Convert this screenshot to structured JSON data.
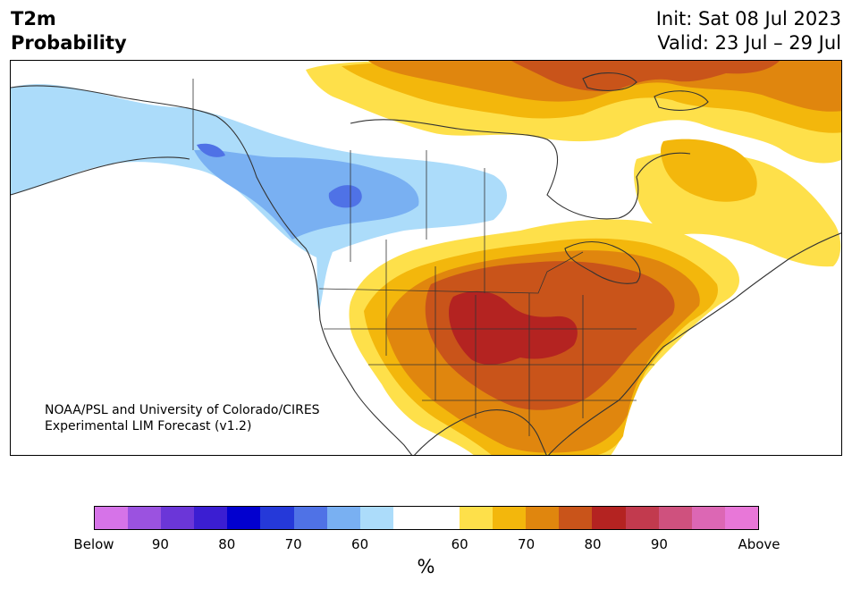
{
  "header": {
    "title_line1": "T2m",
    "title_line2": "Probability",
    "init": "Init: Sat 08 Jul 2023",
    "valid": "Valid: 23 Jul – 29 Jul"
  },
  "map": {
    "region": "North America",
    "credit_line1": "NOAA/PSL and University of Colorado/CIRES",
    "credit_line2": "Experimental LIM Forecast (v1.2)"
  },
  "colorbar": {
    "colors": [
      "#d673e8",
      "#9b52e0",
      "#6b36d8",
      "#3b1ed2",
      "#0200cf",
      "#2539d9",
      "#4f72e6",
      "#79b0f2",
      "#acdcfa",
      "#ffffff",
      "#ffffff",
      "#fee04a",
      "#f3b70c",
      "#e0860e",
      "#c9541a",
      "#b42321",
      "#c23a4e",
      "#cf517e",
      "#dc67b4",
      "#e877d8"
    ],
    "tick_labels": [
      "Below",
      "90",
      "80",
      "70",
      "60",
      "60",
      "70",
      "80",
      "90",
      "Above"
    ],
    "unit": "%"
  },
  "legend_colors": {
    "below_light": "#acdcfa",
    "below_mid": "#79b0f2",
    "below_dark": "#4f72e6",
    "above_60": "#fee04a",
    "above_65": "#f3b70c",
    "above_70": "#e0860e",
    "above_75": "#c9541a",
    "above_80": "#b42321"
  }
}
